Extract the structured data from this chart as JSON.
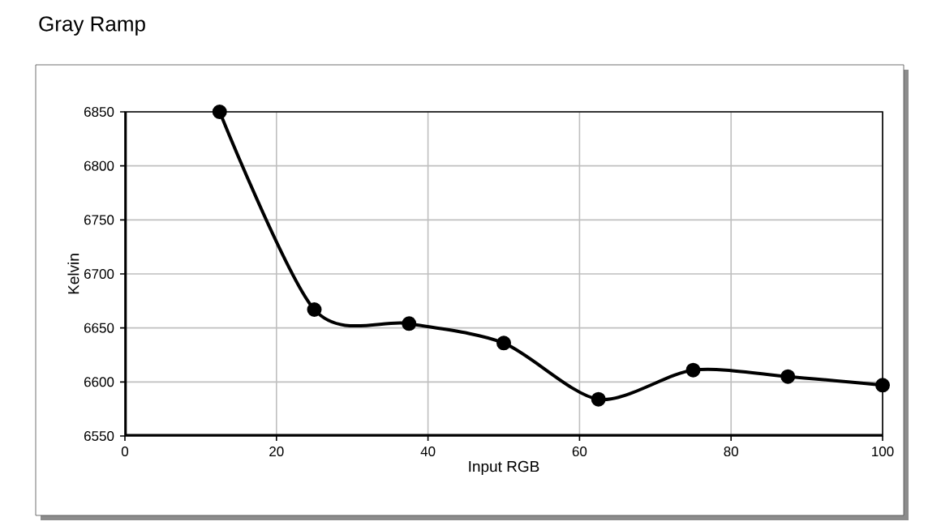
{
  "chart_data": {
    "type": "line",
    "title": "Gray Ramp",
    "xlabel": "Input RGB",
    "ylabel": "Kelvin",
    "x": [
      12.5,
      25,
      37.5,
      50,
      62.5,
      75,
      87.5,
      100
    ],
    "series": [
      {
        "color": "#000000",
        "values": [
          6850,
          6667,
          6654,
          6636,
          6584,
          6611,
          6605,
          6597
        ]
      }
    ],
    "xlim": [
      0,
      100
    ],
    "xticks": [
      0,
      20,
      40,
      60,
      80,
      100
    ],
    "ylim": [
      6550,
      6850
    ],
    "yticks": [
      6550,
      6600,
      6650,
      6700,
      6750,
      6800,
      6850
    ],
    "grid": true,
    "marker": "circle",
    "line_style": "solid"
  }
}
